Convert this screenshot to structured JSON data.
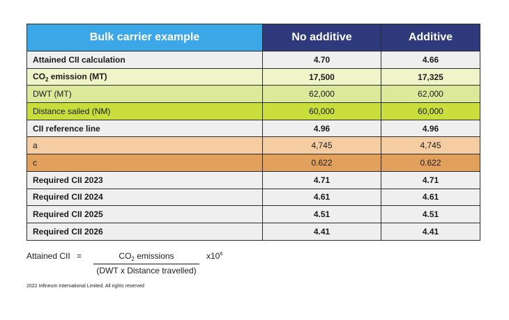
{
  "table": {
    "headers": [
      "Bulk carrier example",
      "No additive",
      "Additive"
    ],
    "rows": [
      {
        "label": "Attained CII calculation",
        "no_additive": "4.70",
        "additive": "4.66"
      },
      {
        "label_pre": "CO",
        "label_sub": "2",
        "label_post": " emission (MT)",
        "no_additive": "17,500",
        "additive": "17,325"
      },
      {
        "label": "DWT (MT)",
        "no_additive": "62,000",
        "additive": "62,000"
      },
      {
        "label": "Distance sailed (NM)",
        "no_additive": "60,000",
        "additive": "60,000"
      },
      {
        "label": "CII reference line",
        "no_additive": "4.96",
        "additive": "4.96"
      },
      {
        "label": "a",
        "no_additive": "4,745",
        "additive": "4,745"
      },
      {
        "label": "c",
        "no_additive": "0.622",
        "additive": "0.622"
      },
      {
        "label": "Required CII 2023",
        "no_additive": "4.71",
        "additive": "4.71"
      },
      {
        "label": "Required CII 2024",
        "no_additive": "4.61",
        "additive": "4.61"
      },
      {
        "label": "Required CII 2025",
        "no_additive": "4.51",
        "additive": "4.51"
      },
      {
        "label": "Required CII 2026",
        "no_additive": "4.41",
        "additive": "4.41"
      }
    ]
  },
  "formula": {
    "lhs": "Attained CII",
    "equals": "=",
    "numerator_pre": "CO",
    "numerator_sub": "2",
    "numerator_post": " emissions",
    "denominator": "(DWT x Distance travelled)",
    "multiplier_base": "x10",
    "multiplier_exp": "6"
  },
  "copyright": "2022 Infineum International Limited. All rights reserved",
  "colors": {
    "header_first": "#3ba7e6",
    "header_other": "#2f3a7c",
    "row_gray": "#efefef",
    "row_light_green": "#eff5c9",
    "row_mid_green": "#dde99a",
    "row_green": "#c9de3c",
    "row_peach": "#f4cea2",
    "row_orange": "#e1a05b"
  }
}
